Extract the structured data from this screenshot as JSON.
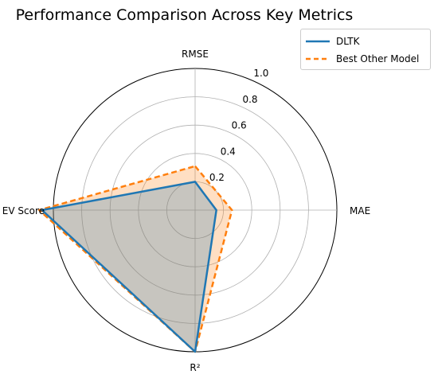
{
  "chart_data": {
    "type": "radar",
    "title": "Performance Comparison Across Key Metrics",
    "axes": [
      "RMSE",
      "MAE",
      "R²",
      "EV Score"
    ],
    "rlim": [
      0,
      1.0
    ],
    "rticks": [
      "0.2",
      "0.4",
      "0.6",
      "0.8",
      "1.0"
    ],
    "rtick_values": [
      0.2,
      0.4,
      0.6,
      0.8,
      1.0
    ],
    "grid": true,
    "legend_position": "top-right",
    "series": [
      {
        "name": "DLTK",
        "values": [
          0.2,
          0.15,
          1.0,
          1.08
        ],
        "color": "#1f77b4",
        "style": "solid"
      },
      {
        "name": "Best Other Model",
        "values": [
          0.31,
          0.26,
          1.0,
          1.1
        ],
        "color": "#ff7f0e",
        "style": "dashed",
        "fill": "#ff7f0e"
      }
    ]
  }
}
